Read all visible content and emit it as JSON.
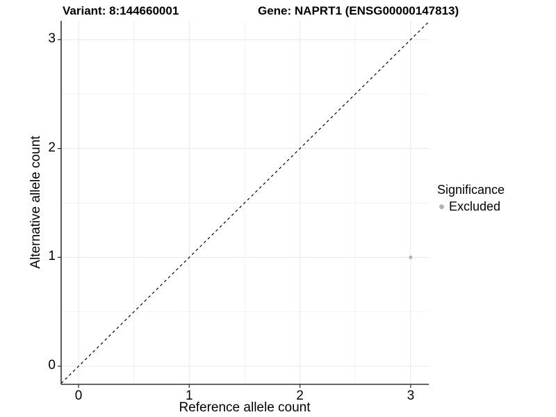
{
  "titles": {
    "variant": "Variant: 8:144660001",
    "gene": "Gene: NAPRT1 (ENSG00000147813)"
  },
  "axes": {
    "x": {
      "label": "Reference allele count",
      "tick_labels": [
        "0",
        "1",
        "2",
        "3"
      ]
    },
    "y": {
      "label": "Alternative allele count",
      "tick_labels": [
        "0",
        "1",
        "2",
        "3"
      ]
    }
  },
  "legend": {
    "title": "Significance",
    "items": [
      {
        "label": "Excluded",
        "color": "#b3b3b3"
      }
    ]
  },
  "chart_data": {
    "type": "scatter",
    "title": "Variant: 8:144660001 | Gene: NAPRT1 (ENSG00000147813)",
    "xlabel": "Reference allele count",
    "ylabel": "Alternative allele count",
    "x_ticks": [
      0,
      1,
      2,
      3
    ],
    "y_ticks": [
      0,
      1,
      2,
      3
    ],
    "xlim": [
      -0.157,
      3.164
    ],
    "ylim": [
      -0.166,
      3.172
    ],
    "grid": "on",
    "legend_position": "right",
    "legend_title": "Significance",
    "series": [
      {
        "name": "Excluded",
        "color": "#b3b3b3",
        "point_radius": 2.5,
        "points": [
          {
            "x": 3,
            "y": 1
          }
        ]
      }
    ],
    "reference_line": {
      "slope": 1,
      "intercept": 0,
      "style": "dashed",
      "color": "#000000"
    }
  },
  "colors": {
    "background": "#ffffff",
    "grid_major": "#e7e7e7",
    "grid_minor": "#f2f2f2",
    "axis_line": "#333333",
    "tick_mark": "#333333",
    "text": "#000000",
    "excluded_point": "#b3b3b3"
  }
}
